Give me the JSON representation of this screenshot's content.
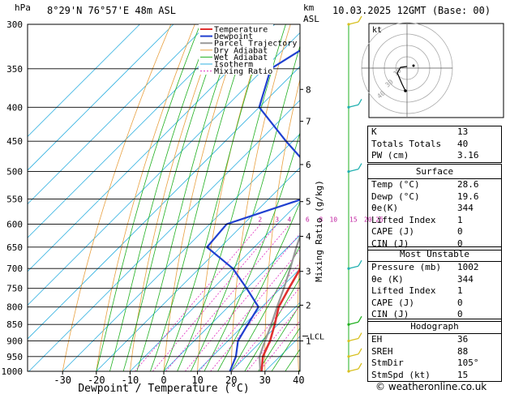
{
  "header": {
    "p_unit": "hPa",
    "location": "8°29'N  76°57'E  48m  ASL",
    "km_unit": "km",
    "asl": "ASL",
    "datetime": "10.03.2025  12GMT  (Base: 00)"
  },
  "chart_data": {
    "type": "skew-t",
    "xlabel": "Dewpoint / Temperature (°C)",
    "mixing_ratio_label": "Mixing Ratio (g/kg)",
    "x_ticks": [
      -30,
      -20,
      -10,
      0,
      10,
      20,
      30,
      40
    ],
    "xlim": [
      -35,
      40
    ],
    "ylim_hpa": [
      1000,
      300
    ],
    "pressure_levels": [
      300,
      350,
      400,
      450,
      500,
      550,
      600,
      650,
      700,
      750,
      800,
      850,
      900,
      950,
      1000
    ],
    "km_ticks": [
      {
        "label": "8",
        "p": 376
      },
      {
        "label": "7",
        "p": 420
      },
      {
        "label": "6",
        "p": 488
      },
      {
        "label": "5",
        "p": 555
      },
      {
        "label": "4",
        "p": 626
      },
      {
        "label": "3",
        "p": 707
      },
      {
        "label": "2",
        "p": 795
      },
      {
        "label": "1",
        "p": 900
      }
    ],
    "lcl": {
      "label": "LCL",
      "p": 885
    },
    "mixing_ratio_values": [
      "2",
      "3",
      "4",
      "6",
      "8",
      "10",
      "15",
      "20",
      "25"
    ],
    "legend": [
      "Temperature",
      "Dewpoint",
      "Parcel Trajectory",
      "Dry Adiabat",
      "Wet Adiabat",
      "Isotherm",
      "Mixing Ratio"
    ],
    "colors": {
      "temperature": "#e03030",
      "dewpoint": "#2040d0",
      "parcel": "#999999",
      "dry_adiabat": "#e8a040",
      "wet_adiabat": "#20b020",
      "isotherm": "#30b0e0",
      "mixing_ratio": "#e030c0",
      "wind": "#20b0b0",
      "wind_yellow": "#d8c020"
    },
    "series": [
      {
        "name": "Temperature",
        "points": [
          [
            1000,
            29
          ],
          [
            950,
            25
          ],
          [
            900,
            22.5
          ],
          [
            850,
            19
          ],
          [
            800,
            15
          ],
          [
            750,
            12.5
          ],
          [
            700,
            10
          ],
          [
            650,
            6
          ],
          [
            600,
            1.5
          ],
          [
            550,
            -3
          ],
          [
            500,
            -7.5
          ],
          [
            450,
            -12.5
          ],
          [
            400,
            -19
          ],
          [
            370,
            -24
          ]
        ]
      },
      {
        "name": "Dewpoint",
        "points": [
          [
            1000,
            19.6
          ],
          [
            950,
            17
          ],
          [
            900,
            13
          ],
          [
            850,
            11
          ],
          [
            800,
            9
          ],
          [
            750,
            0
          ],
          [
            700,
            -10
          ],
          [
            650,
            -24
          ],
          [
            600,
            -25
          ],
          [
            550,
            -10
          ],
          [
            500,
            -15
          ],
          [
            450,
            -32
          ],
          [
            400,
            -50
          ],
          [
            350,
            -58
          ],
          [
            300,
            -50
          ]
        ]
      },
      {
        "name": "Parcel Trajectory",
        "points": [
          [
            1000,
            28.6
          ],
          [
            950,
            24
          ],
          [
            900,
            21
          ],
          [
            850,
            18
          ],
          [
            800,
            14.5
          ],
          [
            750,
            11
          ],
          [
            700,
            7
          ],
          [
            650,
            2.5
          ],
          [
            600,
            -2
          ],
          [
            550,
            -6.5
          ],
          [
            500,
            -11
          ],
          [
            450,
            -17
          ],
          [
            400,
            -24
          ],
          [
            370,
            -28
          ]
        ]
      }
    ],
    "winds": [
      {
        "p": 300,
        "color": "#d8c020"
      },
      {
        "p": 400,
        "color": "#20b0b0"
      },
      {
        "p": 500,
        "color": "#20b0b0"
      },
      {
        "p": 700,
        "color": "#20b0b0"
      },
      {
        "p": 850,
        "color": "#20b020"
      },
      {
        "p": 900,
        "color": "#d8c020"
      },
      {
        "p": 950,
        "color": "#d8c020"
      },
      {
        "p": 1000,
        "color": "#d8c020"
      }
    ]
  },
  "hodograph": {
    "label": "kt",
    "ring_labels": [
      "10",
      "30",
      "40"
    ]
  },
  "indices": [
    {
      "k": "K",
      "v": "13"
    },
    {
      "k": "Totals Totals",
      "v": "40"
    },
    {
      "k": "PW (cm)",
      "v": "3.16"
    }
  ],
  "surface": {
    "title": "Surface",
    "rows": [
      {
        "k": "Temp (°C)",
        "v": "28.6"
      },
      {
        "k": "Dewp (°C)",
        "v": "19.6"
      },
      {
        "k": "θe(K)",
        "v": "344"
      },
      {
        "k": "Lifted Index",
        "v": "1"
      },
      {
        "k": "CAPE (J)",
        "v": "0"
      },
      {
        "k": "CIN (J)",
        "v": "0"
      }
    ]
  },
  "most_unstable": {
    "title": "Most Unstable",
    "rows": [
      {
        "k": "Pressure (mb)",
        "v": "1002"
      },
      {
        "k": "θe (K)",
        "v": "344"
      },
      {
        "k": "Lifted Index",
        "v": "1"
      },
      {
        "k": "CAPE (J)",
        "v": "0"
      },
      {
        "k": "CIN (J)",
        "v": "0"
      }
    ]
  },
  "hodograph_table": {
    "title": "Hodograph",
    "rows": [
      {
        "k": "EH",
        "v": "36"
      },
      {
        "k": "SREH",
        "v": "88"
      },
      {
        "k": "StmDir",
        "v": "105°"
      },
      {
        "k": "StmSpd (kt)",
        "v": "15"
      }
    ]
  },
  "watermark": "© weatheronline.co.uk"
}
